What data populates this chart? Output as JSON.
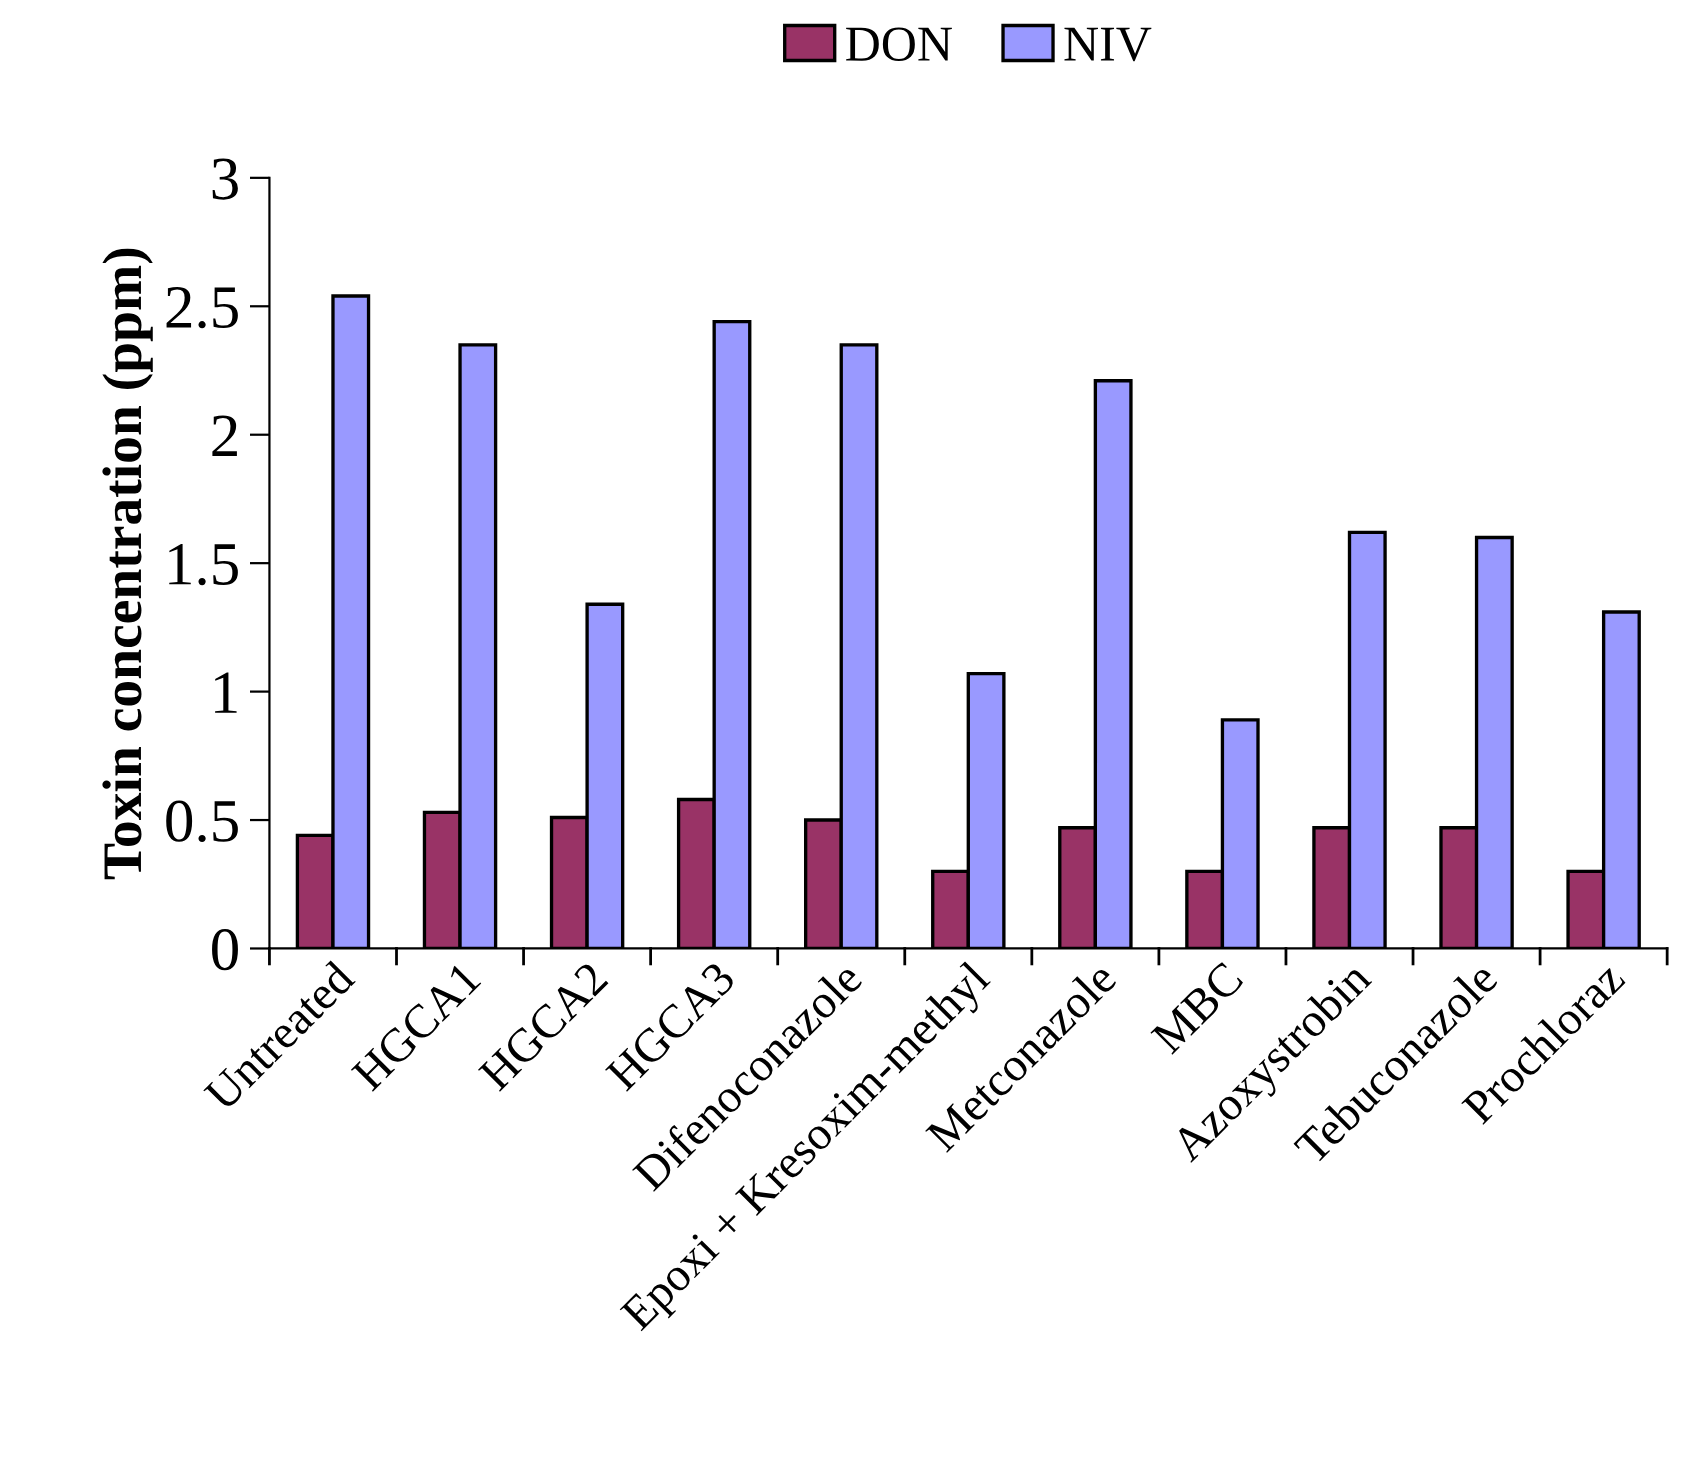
{
  "chart_data": {
    "type": "bar",
    "ylabel": "Toxin concentration (ppm)",
    "categories": [
      "Untreated",
      "HGCA1",
      "HGCA2",
      "HGCA3",
      "Difenoconazole",
      "Epoxi + Kresoxim-methyl",
      "Metconazole",
      "MBC",
      "Azoxystrobin",
      "Tebuconazole",
      "Prochloraz"
    ],
    "series": [
      {
        "name": "DON",
        "color": "#993366",
        "values": [
          0.44,
          0.53,
          0.51,
          0.58,
          0.5,
          0.3,
          0.47,
          0.3,
          0.47,
          0.47,
          0.3
        ]
      },
      {
        "name": "NIV",
        "color": "#9999ff",
        "values": [
          2.54,
          2.35,
          1.34,
          2.44,
          2.35,
          1.07,
          2.21,
          0.89,
          1.62,
          1.6,
          1.31
        ]
      }
    ],
    "ylim": [
      0,
      3
    ],
    "yticks": [
      0,
      0.5,
      1,
      1.5,
      2,
      2.5,
      3
    ],
    "grid": false,
    "legend": "top"
  }
}
